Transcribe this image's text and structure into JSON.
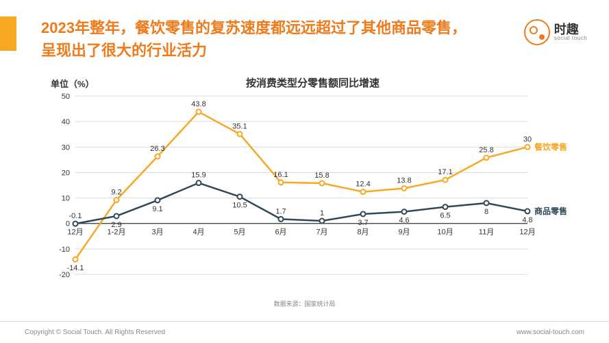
{
  "header": {
    "title": "2023年整年，餐饮零售的复苏速度都远远超过了其他商品零售，呈现出了很大的行业活力",
    "accent_color": "#ef7a1a",
    "block_color": "#f7a823"
  },
  "logo": {
    "cn": "时趣",
    "en": "social touch"
  },
  "chart": {
    "title": "按消费类型分零售额同比增速",
    "y_unit": "单位（%）",
    "type": "line",
    "x_labels": [
      "12月",
      "1-2月",
      "3月",
      "4月",
      "5月",
      "6月",
      "7月",
      "8月",
      "9月",
      "10月",
      "11月",
      "12月"
    ],
    "y_ticks": [
      -20,
      -10,
      0,
      10,
      20,
      30,
      40,
      50
    ],
    "ylim": [
      -20,
      50
    ],
    "grid_color": "#d9d9d9",
    "axis_color": "#333333",
    "background_color": "#ffffff",
    "series": [
      {
        "name": "餐饮零售",
        "legend_color": "#f7a823",
        "color": "#f7a823",
        "line_width": 2.5,
        "values": [
          -14.1,
          9.2,
          26.3,
          43.8,
          35.1,
          16.1,
          15.8,
          12.4,
          13.8,
          17.1,
          25.8,
          30
        ]
      },
      {
        "name": "商品零售",
        "legend_color": "#2f4858",
        "color": "#2f4858",
        "line_width": 2.5,
        "values": [
          -0.1,
          2.9,
          9.1,
          15.9,
          10.5,
          1.7,
          1,
          3.7,
          4.6,
          6.5,
          8,
          4.8
        ]
      }
    ],
    "data_source": "数据来源：国家统计局"
  },
  "footer": {
    "left": "Copyright © Social Touch. All Rights Reserved",
    "right": "www.social-touch.com"
  }
}
